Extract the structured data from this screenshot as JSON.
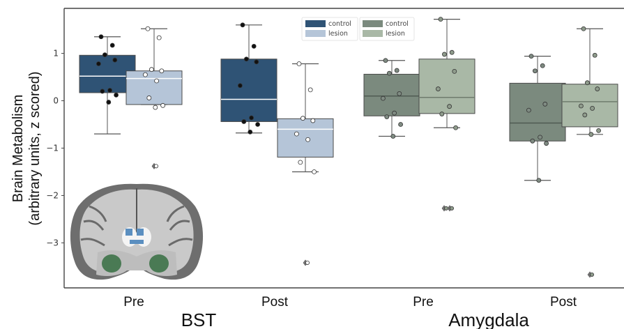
{
  "chart_data": {
    "type": "box",
    "ylabel_line1": "Brain Metabolism",
    "ylabel_line2": "(arbitrary units, z scored)",
    "ylim": [
      -3.95,
      1.95
    ],
    "yticks": [
      1,
      0,
      -1,
      -2,
      -3
    ],
    "ytick_labels": [
      "1",
      "0",
      "−1",
      "−2",
      "−3"
    ],
    "categories": [
      "Pre",
      "Post",
      "Pre",
      "Post"
    ],
    "region_labels": [
      {
        "label": "BST",
        "under": [
          0,
          1
        ]
      },
      {
        "label": "Amygdala",
        "under": [
          2,
          3
        ]
      }
    ],
    "legends": [
      {
        "region": "BST",
        "entries": [
          {
            "label": "control",
            "color": "#2f5375"
          },
          {
            "label": "lesion",
            "color": "#b5c5d8"
          }
        ]
      },
      {
        "region": "Amygdala",
        "entries": [
          {
            "label": "control",
            "color": "#7b8a7e"
          },
          {
            "label": "lesion",
            "color": "#a9b8a6"
          }
        ]
      }
    ],
    "boxes": [
      {
        "region": "BST",
        "timepoint": "Pre",
        "group": "control",
        "color": "#2f5375",
        "median_color": "#ffffff",
        "point_color": "#111111",
        "q1": 0.17,
        "median": 0.52,
        "q3": 0.96,
        "whisker_low": -0.7,
        "whisker_high": 1.35,
        "outliers": [],
        "points": [
          1.35,
          1.17,
          0.97,
          0.86,
          0.78,
          0.22,
          0.2,
          0.12,
          -0.03
        ]
      },
      {
        "region": "BST",
        "timepoint": "Pre",
        "group": "lesion",
        "color": "#b5c5d8",
        "median_color": "#ffffff",
        "point_color": "#ffffff",
        "q1": -0.08,
        "median": 0.47,
        "q3": 0.63,
        "whisker_low": -0.08,
        "whisker_high": 1.52,
        "outliers": [
          -1.38
        ],
        "points": [
          1.52,
          1.33,
          0.66,
          0.63,
          0.55,
          0.42,
          0.06,
          -0.1,
          -0.14
        ]
      },
      {
        "region": "BST",
        "timepoint": "Post",
        "group": "control",
        "color": "#2f5375",
        "median_color": "#ffffff",
        "point_color": "#111111",
        "q1": -0.44,
        "median": 0.03,
        "q3": 0.88,
        "whisker_low": -0.68,
        "whisker_high": 1.6,
        "outliers": [],
        "points": [
          1.6,
          1.15,
          0.88,
          0.82,
          0.32,
          -0.36,
          -0.44,
          -0.5,
          -0.66
        ]
      },
      {
        "region": "BST",
        "timepoint": "Post",
        "group": "lesion",
        "color": "#b5c5d8",
        "median_color": "#ffffff",
        "point_color": "#ffffff",
        "q1": -1.19,
        "median": -0.6,
        "q3": -0.38,
        "whisker_low": -1.5,
        "whisker_high": 0.78,
        "outliers": [
          -3.42
        ],
        "points": [
          0.78,
          0.23,
          -0.37,
          -0.42,
          -0.7,
          -0.82,
          -1.3,
          -1.5
        ]
      },
      {
        "region": "Amygdala",
        "timepoint": "Pre",
        "group": "control",
        "color": "#7b8a7e",
        "median_color": "#4f5a52",
        "point_color": "#7f8b82",
        "q1": -0.32,
        "median": 0.1,
        "q3": 0.56,
        "whisker_low": -0.75,
        "whisker_high": 0.85,
        "outliers": [],
        "points": [
          0.85,
          0.64,
          0.58,
          0.15,
          0.05,
          -0.26,
          -0.34,
          -0.5,
          -0.75
        ]
      },
      {
        "region": "Amygdala",
        "timepoint": "Pre",
        "group": "lesion",
        "color": "#a9b8a6",
        "median_color": "#6f7c6d",
        "point_color": "#8f9c8c",
        "q1": -0.27,
        "median": 0.07,
        "q3": 0.88,
        "whisker_low": -0.57,
        "whisker_high": 1.72,
        "outliers": [
          -2.27,
          -2.27
        ],
        "points": [
          1.72,
          1.02,
          0.98,
          0.62,
          0.25,
          -0.12,
          -0.28,
          -0.57
        ]
      },
      {
        "region": "Amygdala",
        "timepoint": "Post",
        "group": "control",
        "color": "#7b8a7e",
        "median_color": "#4f5a52",
        "point_color": "#7f8b82",
        "q1": -0.85,
        "median": -0.47,
        "q3": 0.37,
        "whisker_low": -1.68,
        "whisker_high": 0.94,
        "outliers": [],
        "points": [
          0.94,
          0.74,
          0.63,
          -0.07,
          -0.2,
          -0.77,
          -0.85,
          -0.9,
          -1.68
        ]
      },
      {
        "region": "Amygdala",
        "timepoint": "Post",
        "group": "lesion",
        "color": "#a9b8a6",
        "median_color": "#6f7c6d",
        "point_color": "#8f9c8c",
        "q1": -0.55,
        "median": -0.02,
        "q3": 0.35,
        "whisker_low": -0.71,
        "whisker_high": 1.52,
        "outliers": [
          -3.67
        ],
        "points": [
          1.52,
          0.96,
          0.38,
          0.25,
          -0.11,
          -0.16,
          -0.3,
          -0.63,
          -0.71
        ]
      }
    ]
  },
  "inset": {
    "name": "coronal brain section",
    "colors": {
      "highlight_bst": "#5b8fc0",
      "highlight_amygdala": "#4a7a54"
    }
  }
}
